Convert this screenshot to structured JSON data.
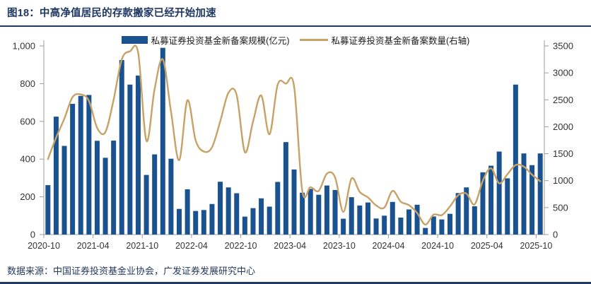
{
  "header": {
    "title": "图18：中高净值居民的存款搬家已经开始加速"
  },
  "footer": {
    "source": "数据来源：中国证券投资基金业协会，广发证券发展研究中心"
  },
  "legend": [
    {
      "label": "私募证券投资基金新备案规模(亿元)"
    },
    {
      "label": "私募证券投资基金新备案数量(右轴)"
    }
  ],
  "colors": {
    "bar": "#1A5290",
    "line": "#C7A266",
    "title": "#1F3864",
    "axis_line": "#9C9C9C",
    "axis_text": "#333333",
    "source_text": "#243A5E"
  },
  "chart_data": {
    "type": "bar+line",
    "title": "图18：中高净值居民的存款搬家已经开始加速",
    "x_tick_labels": [
      "2020-10",
      "2021-04",
      "2021-10",
      "2022-04",
      "2022-10",
      "2023-04",
      "2023-10",
      "2024-04",
      "2024-10",
      "2025-04",
      "2025-10"
    ],
    "categories": [
      "2020-10",
      "2020-11",
      "2020-12",
      "2021-01",
      "2021-02",
      "2021-03",
      "2021-04",
      "2021-05",
      "2021-06",
      "2021-07",
      "2021-08",
      "2021-09",
      "2021-10",
      "2021-11",
      "2021-12",
      "2022-01",
      "2022-02",
      "2022-03",
      "2022-04",
      "2022-05",
      "2022-06",
      "2022-07",
      "2022-08",
      "2022-09",
      "2022-10",
      "2022-11",
      "2022-12",
      "2023-01",
      "2023-02",
      "2023-03",
      "2023-04",
      "2023-05",
      "2023-06",
      "2023-07",
      "2023-08",
      "2023-09",
      "2023-10",
      "2023-11",
      "2023-12",
      "2024-01",
      "2024-02",
      "2024-03",
      "2024-04",
      "2024-05",
      "2024-06",
      "2024-07",
      "2024-08",
      "2024-09",
      "2024-10",
      "2024-11",
      "2024-12",
      "2025-01",
      "2025-02",
      "2025-03",
      "2025-04",
      "2025-05",
      "2025-06",
      "2025-07",
      "2025-08",
      "2025-09",
      "2025-10"
    ],
    "series": [
      {
        "name": "私募证券投资基金新备案规模(亿元)",
        "type": "bar",
        "axis": "left",
        "values": [
          262,
          625,
          470,
          693,
          735,
          740,
          497,
          407,
          498,
          925,
          795,
          843,
          316,
          425,
          990,
          402,
          136,
          240,
          125,
          130,
          162,
          280,
          250,
          219,
          95,
          140,
          192,
          148,
          279,
          490,
          345,
          222,
          242,
          211,
          260,
          236,
          84,
          198,
          154,
          170,
          85,
          100,
          173,
          90,
          133,
          158,
          35,
          96,
          80,
          110,
          220,
          250,
          150,
          330,
          365,
          440,
          298,
          795,
          430,
          368,
          430
        ]
      },
      {
        "name": "私募证券投资基金新备案数量(右轴)",
        "type": "line",
        "axis": "right",
        "values": [
          1400,
          1800,
          2150,
          2550,
          2600,
          2480,
          1980,
          1900,
          2500,
          3250,
          3400,
          3370,
          1740,
          2700,
          3250,
          2280,
          1380,
          2490,
          1750,
          1540,
          1620,
          2100,
          2630,
          2590,
          1530,
          2100,
          2580,
          1860,
          2780,
          2800,
          2750,
          810,
          880,
          810,
          1130,
          1060,
          420,
          1040,
          790,
          690,
          540,
          500,
          810,
          610,
          545,
          400,
          185,
          370,
          360,
          520,
          730,
          760,
          560,
          1000,
          1230,
          950,
          1120,
          1290,
          1260,
          1110,
          990
        ]
      }
    ],
    "left_axis": {
      "range": [
        0,
        1000
      ],
      "ticks": [
        0,
        200,
        400,
        600,
        800,
        1000
      ],
      "labels": [
        "0",
        "200",
        "400",
        "600",
        "800",
        "1,000"
      ]
    },
    "right_axis": {
      "range": [
        0,
        3500
      ],
      "ticks": [
        0,
        500,
        1000,
        1500,
        2000,
        2500,
        3000,
        3500
      ],
      "labels": [
        "0",
        "500",
        "1000",
        "1500",
        "2000",
        "2500",
        "3000",
        "3500"
      ]
    },
    "grid": false,
    "legend_position": "top-center"
  }
}
